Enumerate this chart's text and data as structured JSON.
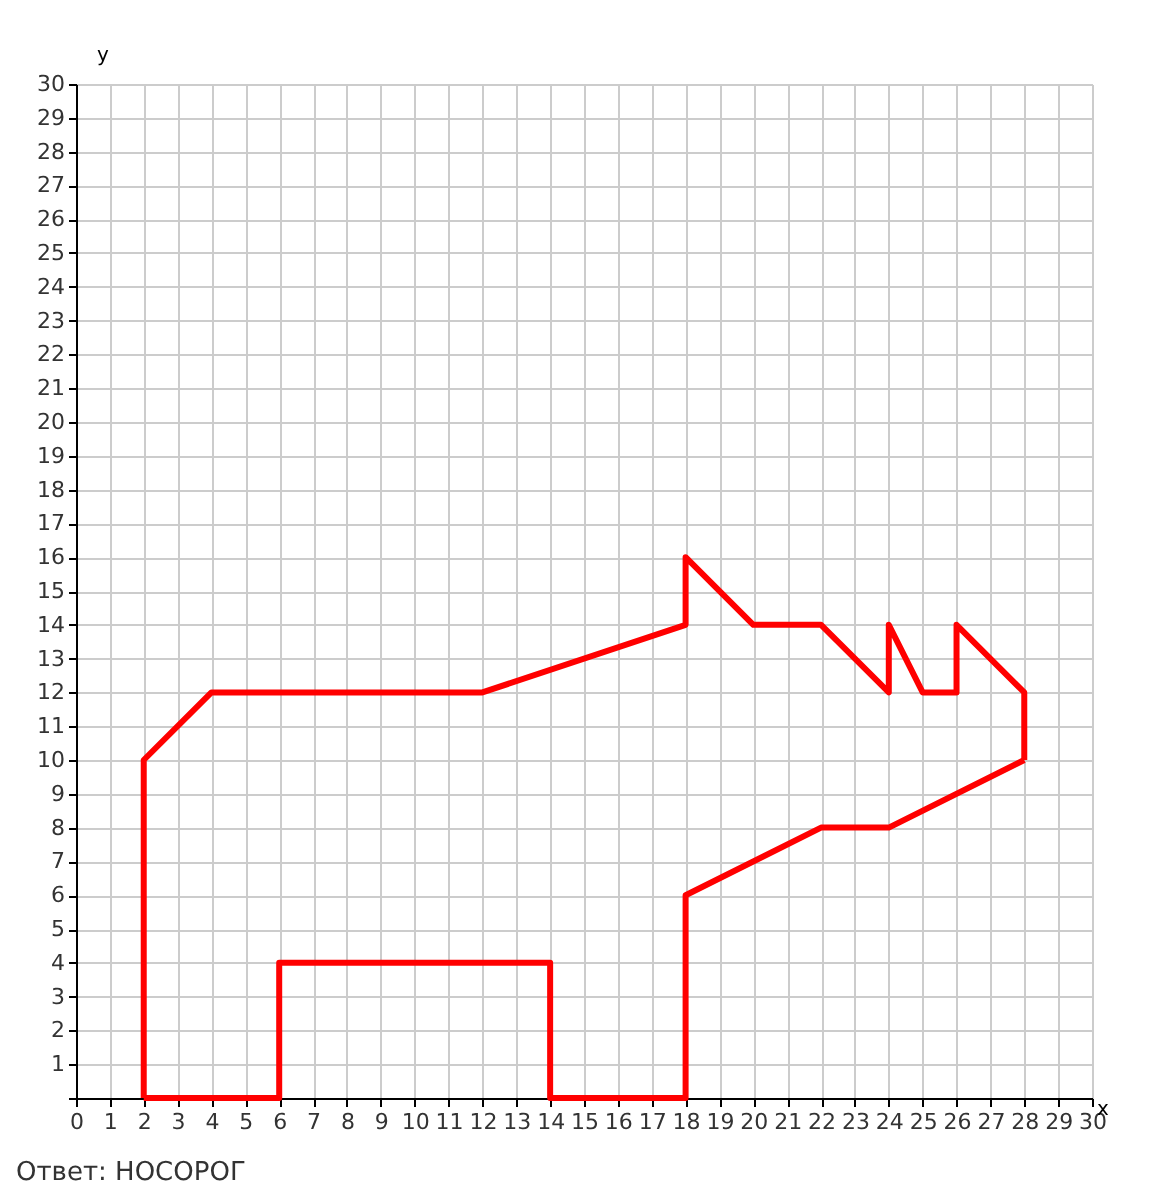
{
  "chart_data": {
    "type": "line",
    "xlabel": "x",
    "ylabel": "y",
    "series": [
      {
        "color": "#ff0000",
        "x": [
          2,
          2,
          4,
          12,
          18,
          18,
          20,
          22,
          24,
          24,
          25,
          26,
          26,
          28,
          28
        ],
        "values": [
          0,
          10,
          12,
          12,
          14,
          16,
          14,
          14,
          12,
          14,
          12,
          12,
          14,
          12,
          10
        ]
      },
      {
        "color": "#ff0000",
        "x": [
          2,
          6,
          6,
          14,
          14,
          18,
          18,
          22,
          24,
          28
        ],
        "values": [
          0,
          0,
          4,
          4,
          0,
          0,
          6,
          8,
          8,
          10
        ]
      }
    ],
    "xlim": [
      0,
      30
    ],
    "ylim": [
      0,
      30
    ],
    "xticks": [
      0,
      1,
      2,
      3,
      4,
      5,
      6,
      7,
      8,
      9,
      10,
      11,
      12,
      13,
      14,
      15,
      16,
      17,
      18,
      19,
      20,
      21,
      22,
      23,
      24,
      25,
      26,
      27,
      28,
      29,
      30
    ],
    "yticks": [
      {
        "value": 0,
        "label": null
      },
      1,
      2,
      3,
      4,
      5,
      6,
      7,
      8,
      9,
      10,
      11,
      12,
      13,
      14,
      15,
      16,
      17,
      18,
      19,
      20,
      21,
      22,
      23,
      24,
      25,
      26,
      27,
      28,
      29,
      30
    ],
    "grid": true,
    "marker": "none",
    "line_style": "solid",
    "annotations": [
      "Ответ: НОСОРОГ"
    ]
  }
}
